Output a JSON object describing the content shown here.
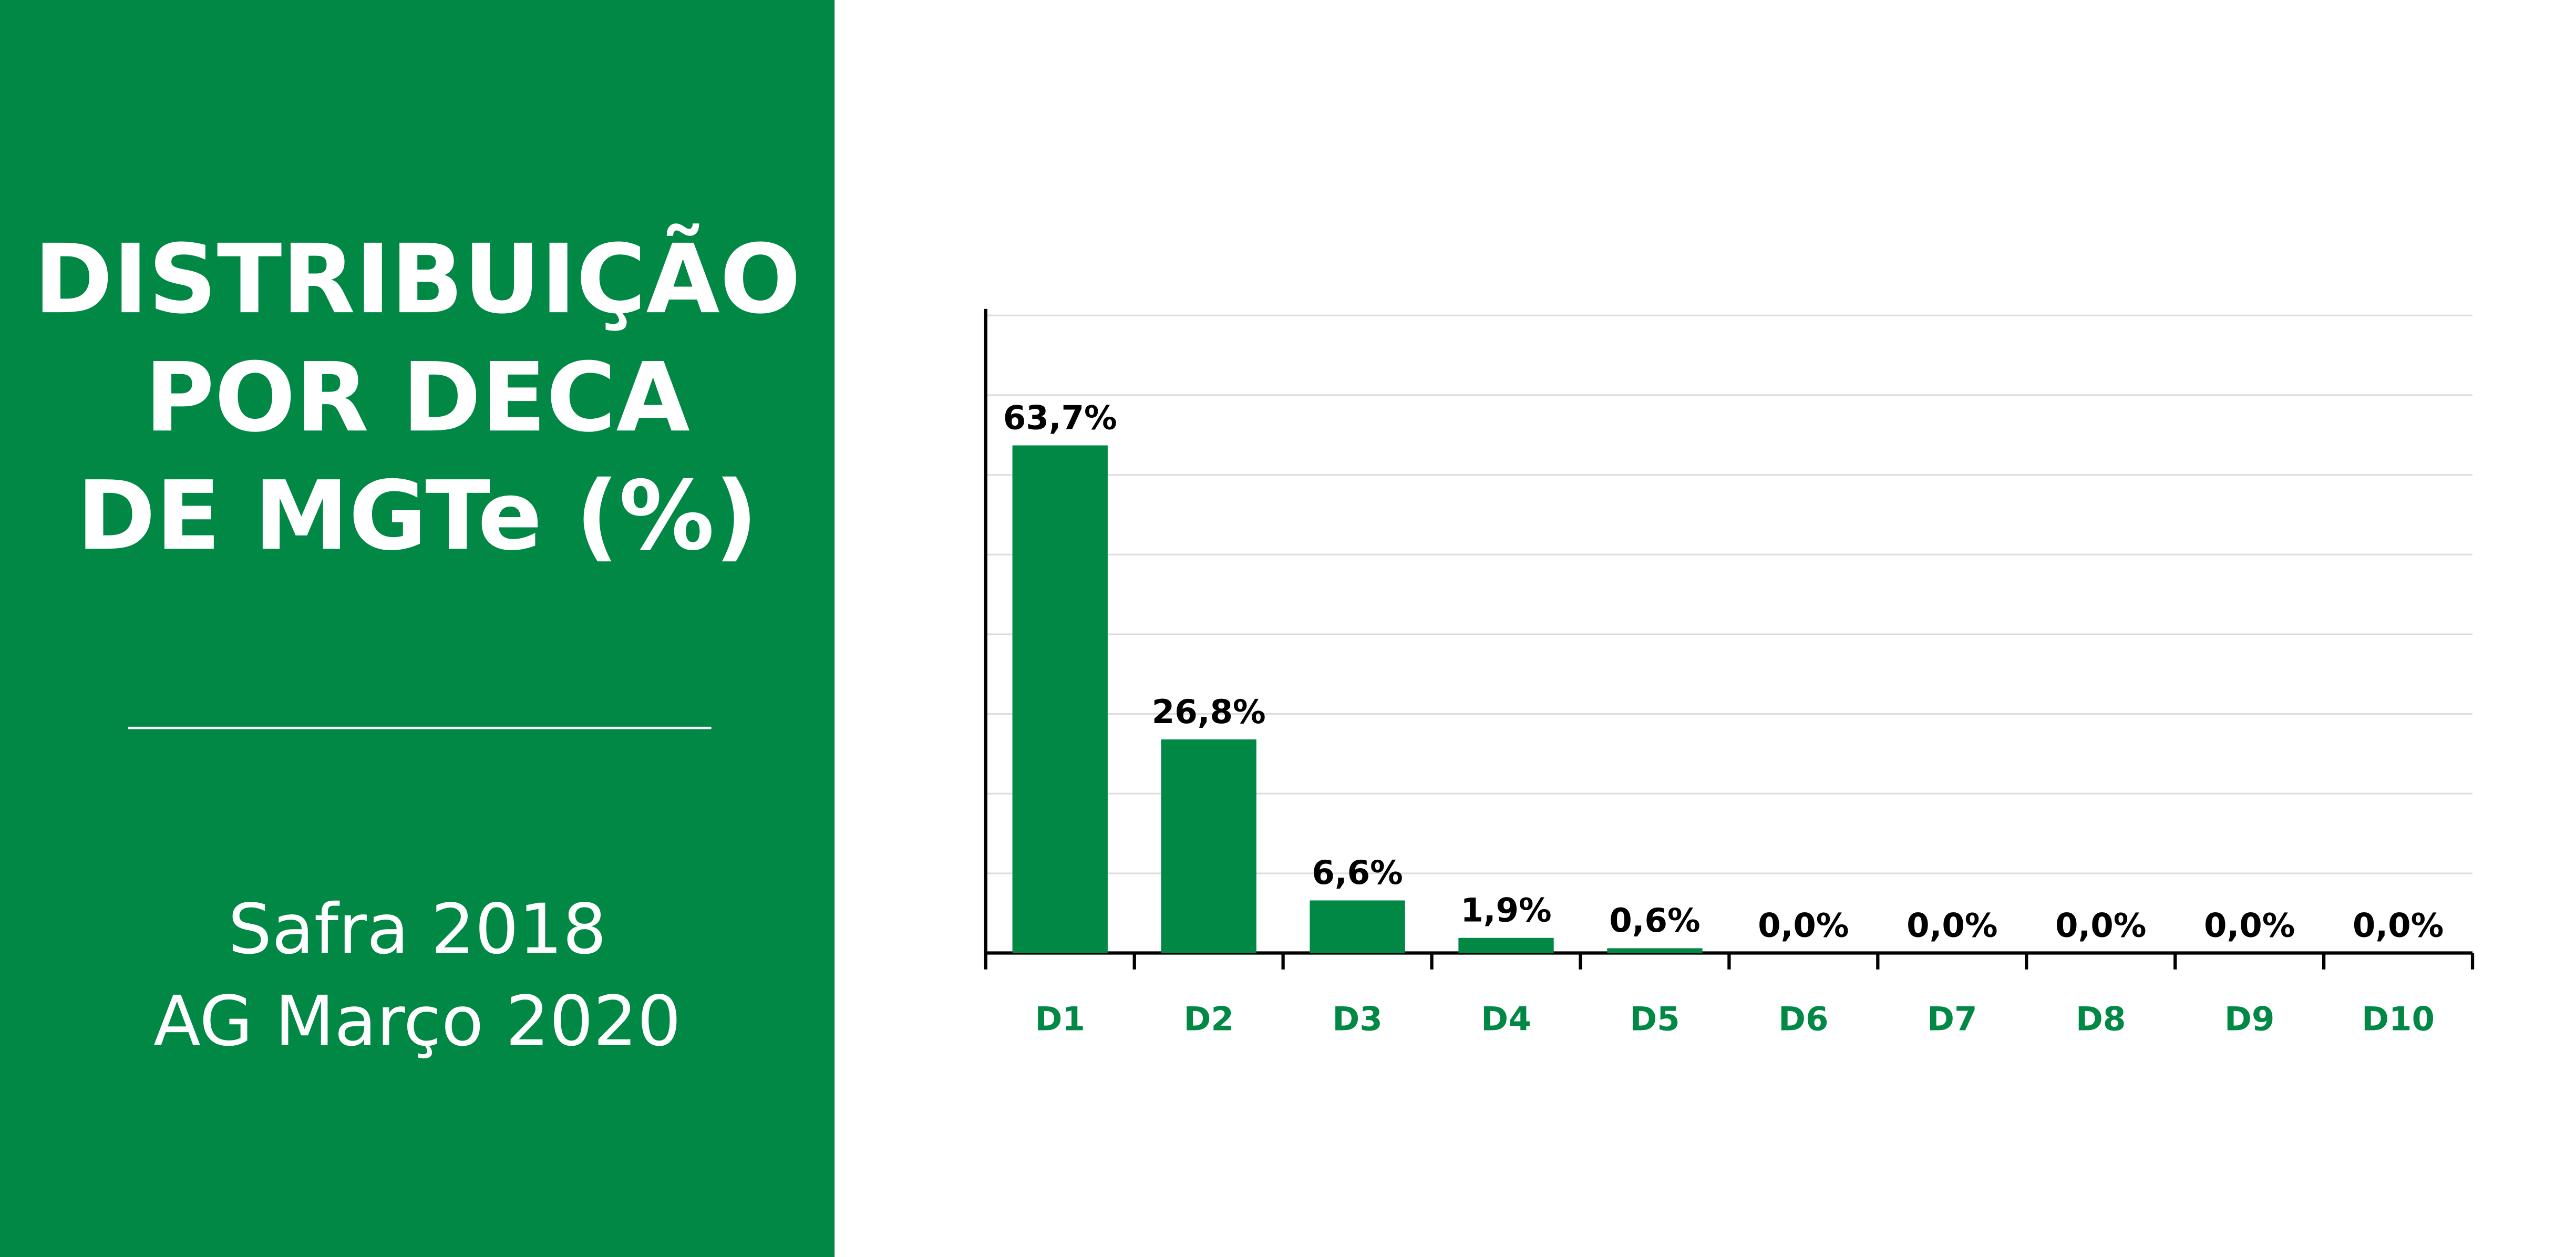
{
  "chart_data": {
    "type": "bar",
    "title": [
      "DISTRIBUIÇÃO",
      "POR DECA",
      "DE MGTe (%)"
    ],
    "subtitle": [
      "Safra 2018",
      "AG Março 2020"
    ],
    "categories": [
      "D1",
      "D2",
      "D3",
      "D4",
      "D5",
      "D6",
      "D7",
      "D8",
      "D9",
      "D10"
    ],
    "values": [
      63.7,
      26.8,
      6.6,
      1.9,
      0.6,
      0.0,
      0.0,
      0.0,
      0.0,
      0.0
    ],
    "value_labels": [
      "63,7%",
      "26,8%",
      "6,6%",
      "1,9%",
      "0,6%",
      "0,0%",
      "0,0%",
      "0,0%",
      "0,0%",
      "0,0%"
    ],
    "color": "#008844",
    "ylim": [
      0,
      80
    ],
    "yticks": [
      0,
      10,
      20,
      30,
      40,
      50,
      60,
      70,
      80
    ],
    "grid": true
  }
}
